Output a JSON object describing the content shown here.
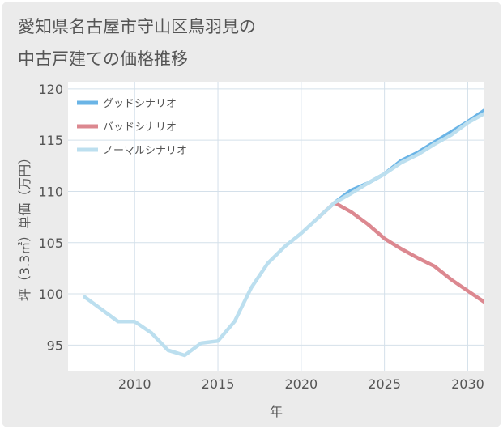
{
  "chart_data": {
    "type": "line",
    "title_lines": [
      "愛知県名古屋市守山区鳥羽見の",
      "中古戸建ての価格推移"
    ],
    "xlabel": "年",
    "ylabel": "坪（3.3㎡）単価（万円）",
    "xlim": [
      2006,
      2031
    ],
    "ylim": [
      92.5,
      120.7
    ],
    "xticks": [
      2010,
      2015,
      2020,
      2025,
      2030
    ],
    "yticks": [
      95,
      100,
      105,
      110,
      115,
      120
    ],
    "series": [
      {
        "name": "グッドシナリオ",
        "color": "#6ab4e6",
        "x": [
          2022,
          2023,
          2024,
          2025,
          2026,
          2027,
          2028,
          2029,
          2030,
          2031
        ],
        "values": [
          108.9,
          110.1,
          110.8,
          111.7,
          113.0,
          113.8,
          114.8,
          115.8,
          116.8,
          117.9
        ]
      },
      {
        "name": "バッドシナリオ",
        "color": "#dc8890",
        "x": [
          2021,
          2022,
          2023,
          2024,
          2025,
          2026,
          2027,
          2028,
          2029,
          2030,
          2031
        ],
        "values": [
          107.4,
          108.9,
          108.0,
          106.8,
          105.4,
          104.4,
          103.5,
          102.7,
          101.4,
          100.3,
          99.2
        ]
      },
      {
        "name": "ノーマルシナリオ",
        "color": "#bcdfef",
        "x": [
          2007,
          2008,
          2009,
          2010,
          2011,
          2012,
          2013,
          2014,
          2015,
          2016,
          2017,
          2018,
          2019,
          2020,
          2021,
          2022,
          2023,
          2024,
          2025,
          2026,
          2027,
          2028,
          2029,
          2030,
          2031
        ],
        "values": [
          99.7,
          98.5,
          97.3,
          97.3,
          96.2,
          94.5,
          94.0,
          95.2,
          95.4,
          97.3,
          100.6,
          103.0,
          104.6,
          105.9,
          107.4,
          108.9,
          109.8,
          110.8,
          111.7,
          112.8,
          113.6,
          114.6,
          115.5,
          116.7,
          117.6
        ]
      }
    ]
  }
}
